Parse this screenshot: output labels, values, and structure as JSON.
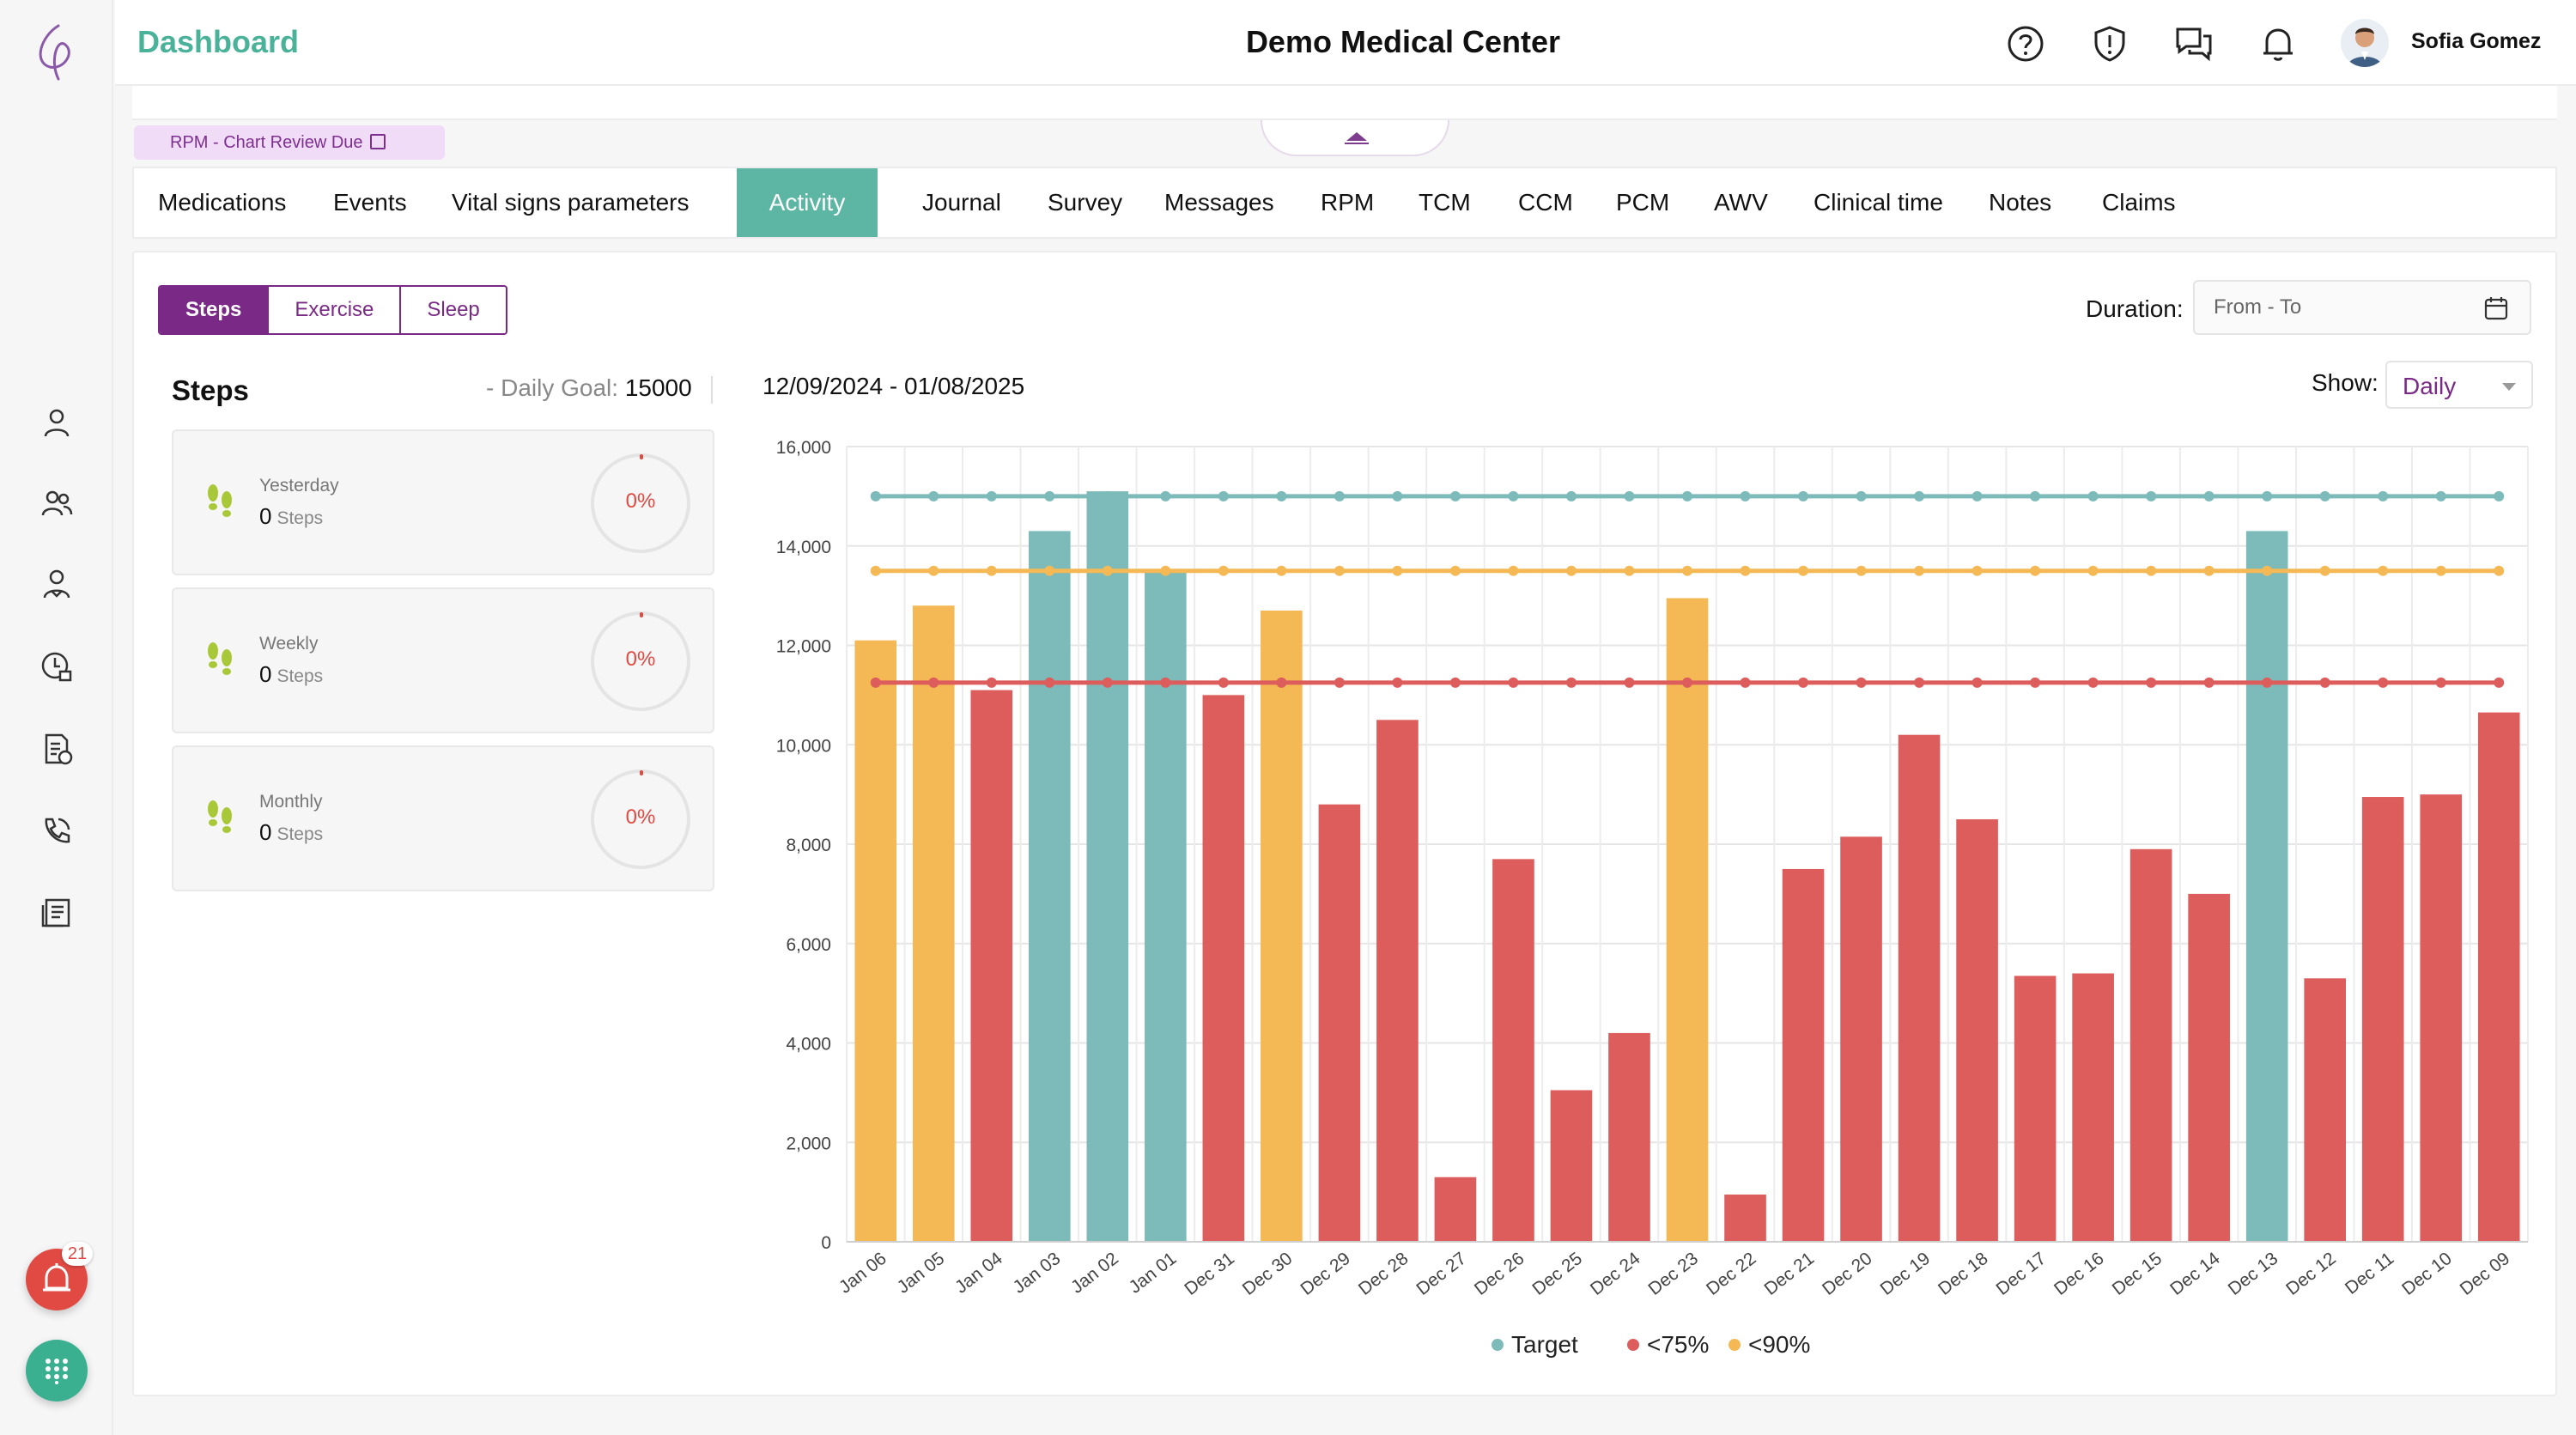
{
  "header": {
    "dashboard_label": "Dashboard",
    "center_title": "Demo Medical Center",
    "user_name": "Sofia Gomez",
    "icons": [
      "help-icon",
      "alert-shield-icon",
      "chat-icon",
      "bell-icon"
    ]
  },
  "sidebar": {
    "icons": [
      "patient-icon",
      "patients-group-icon",
      "care-team-icon",
      "schedule-icon",
      "billing-icon",
      "phone-icon",
      "reports-icon"
    ],
    "alert_count": "21"
  },
  "banner": {
    "rpm_link": "RPM - Chart Review Due"
  },
  "tabs": [
    {
      "label": "Medications",
      "active": false
    },
    {
      "label": "Events",
      "active": false
    },
    {
      "label": "Vital signs parameters",
      "active": false
    },
    {
      "label": "Activity",
      "active": true
    },
    {
      "label": "Journal",
      "active": false
    },
    {
      "label": "Survey",
      "active": false
    },
    {
      "label": "Messages",
      "active": false
    },
    {
      "label": "RPM",
      "active": false
    },
    {
      "label": "TCM",
      "active": false
    },
    {
      "label": "CCM",
      "active": false
    },
    {
      "label": "PCM",
      "active": false
    },
    {
      "label": "AWV",
      "active": false
    },
    {
      "label": "Clinical time",
      "active": false
    },
    {
      "label": "Notes",
      "active": false
    },
    {
      "label": "Claims",
      "active": false
    }
  ],
  "activity": {
    "subtabs": [
      "Steps",
      "Exercise",
      "Sleep"
    ],
    "active_subtab": "Steps",
    "duration_label": "Duration:",
    "duration_placeholder": "From - To",
    "steps_title": "Steps",
    "daily_goal_prefix": "- Daily Goal:",
    "daily_goal_value": "15000",
    "cards": [
      {
        "label": "Yesterday",
        "value": "0",
        "unit": "Steps",
        "percent": "0%"
      },
      {
        "label": "Weekly",
        "value": "0",
        "unit": "Steps",
        "percent": "0%"
      },
      {
        "label": "Monthly",
        "value": "0",
        "unit": "Steps",
        "percent": "0%"
      }
    ],
    "date_range": "12/09/2024 - 01/08/2025",
    "show_label": "Show:",
    "show_value": "Daily"
  },
  "colors": {
    "target": "#7dbbbb",
    "below75": "#dc5d5b",
    "below90": "#f4b954",
    "accent_purple": "#7a2a86",
    "accent_green": "#5db6a3"
  },
  "chart_data": {
    "type": "bar",
    "categories": [
      "Jan 06",
      "Jan 05",
      "Jan 04",
      "Jan 03",
      "Jan 02",
      "Jan 01",
      "Dec 31",
      "Dec 30",
      "Dec 29",
      "Dec 28",
      "Dec 27",
      "Dec 26",
      "Dec 25",
      "Dec 24",
      "Dec 23",
      "Dec 22",
      "Dec 21",
      "Dec 20",
      "Dec 19",
      "Dec 18",
      "Dec 17",
      "Dec 16",
      "Dec 15",
      "Dec 14",
      "Dec 13",
      "Dec 12",
      "Dec 11",
      "Dec 10",
      "Dec 09"
    ],
    "values": [
      12100,
      12800,
      11100,
      14300,
      15100,
      13500,
      11000,
      12700,
      8800,
      10500,
      1300,
      7700,
      3050,
      4200,
      12950,
      950,
      7500,
      8150,
      10200,
      8500,
      5350,
      5400,
      7900,
      7000,
      14300,
      5300,
      8950,
      9000,
      10650
    ],
    "bar_status": [
      "<90%",
      "<90%",
      "<75%",
      "Target",
      "Target",
      "Target",
      "<75%",
      "<90%",
      "<75%",
      "<75%",
      "<75%",
      "<75%",
      "<75%",
      "<75%",
      "<90%",
      "<75%",
      "<75%",
      "<75%",
      "<75%",
      "<75%",
      "<75%",
      "<75%",
      "<75%",
      "<75%",
      "Target",
      "<75%",
      "<75%",
      "<75%",
      "<75%"
    ],
    "reference_lines": [
      {
        "name": "Target",
        "value": 15000
      },
      {
        "name": "<90%",
        "value": 13500
      },
      {
        "name": "<75%",
        "value": 11250
      }
    ],
    "ylim": [
      0,
      16000
    ],
    "yticks": [
      0,
      2000,
      4000,
      6000,
      8000,
      10000,
      12000,
      14000,
      16000
    ],
    "ytick_labels": [
      "0",
      "2,000",
      "4,000",
      "6,000",
      "8,000",
      "10,000",
      "12,000",
      "14,000",
      "16,000"
    ],
    "legend": [
      "Target",
      "<75%",
      "<90%"
    ],
    "legend_position": "bottom-center",
    "grid": true
  }
}
